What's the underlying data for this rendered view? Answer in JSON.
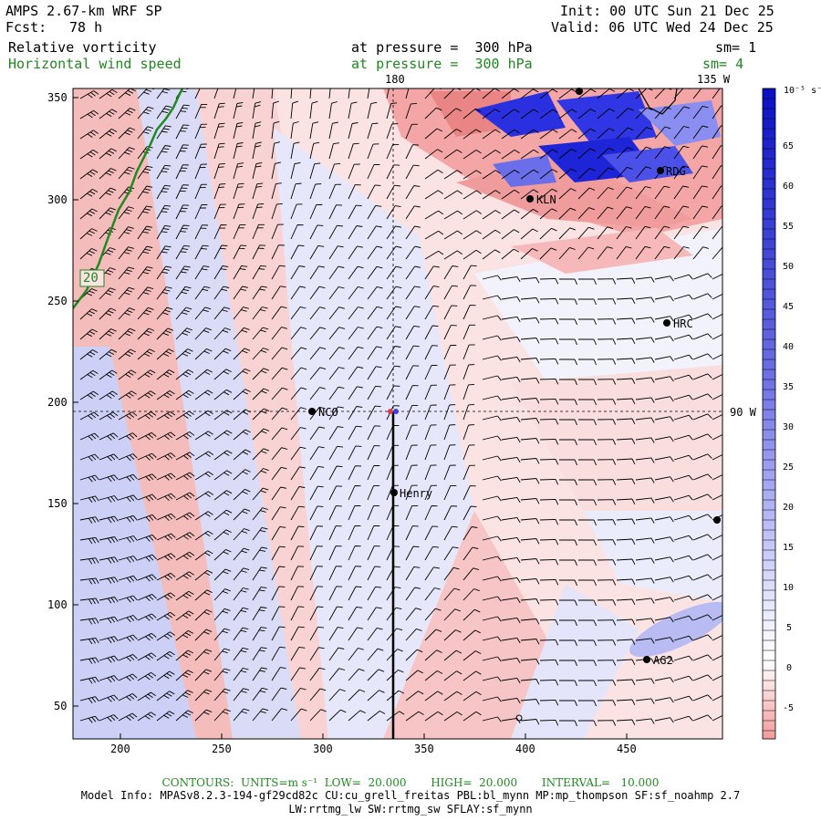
{
  "header": {
    "model": "AMPS 2.67-km WRF SP",
    "fcst_label": "Fcst:",
    "fcst_value": "78 h",
    "init": "Init: 00 UTC Sun 21 Dec 25",
    "valid": "Valid: 06 UTC Wed 24 Dec 25",
    "field1": "Relative vorticity",
    "field1_level": "at pressure =  300 hPa",
    "field1_sm": "sm= 1",
    "field2": "Horizontal wind speed",
    "field2_level": "at pressure =  300 hPa",
    "field2_sm": "sm= 4"
  },
  "map": {
    "lon_top_label": "180",
    "lon_right_top_label": "135 W",
    "lon_right_label": "90 W",
    "contour_label": "20",
    "stations": [
      "RDG",
      "KLN",
      "HRC",
      "NCO",
      "Henry",
      "AG2"
    ],
    "colors": {
      "pink": "#f4a8a8",
      "light_pink": "#fbe0e0",
      "blue": "#2830e0",
      "light_blue": "#c8caf4",
      "contour": "#1f8a1f"
    }
  },
  "axes": {
    "x_ticks": [
      "200",
      "250",
      "300",
      "350",
      "400",
      "450"
    ],
    "y_ticks": [
      "350",
      "300",
      "250",
      "200",
      "150",
      "100",
      "50"
    ]
  },
  "colorbar": {
    "units": "10⁻⁵ s⁻¹",
    "labels": [
      "65",
      "60",
      "55",
      "50",
      "45",
      "40",
      "35",
      "30",
      "25",
      "20",
      "15",
      "10",
      "5",
      "0",
      "-5"
    ]
  },
  "footer": {
    "contours": "CONTOURS:  UNITS=m s⁻¹  LOW=  20.000       HIGH=  20.000       INTERVAL=   10.000",
    "model_info": "Model Info: MPASv8.2.3-194-gf29cd82c CU:cu_grell_freitas PBL:bl_mynn MP:mp_thompson SF:sf_noahmp 2.7",
    "model_info2": "LW:rrtmg_lw SW:rrtmg_sw SFLAY:sf_mynn"
  }
}
